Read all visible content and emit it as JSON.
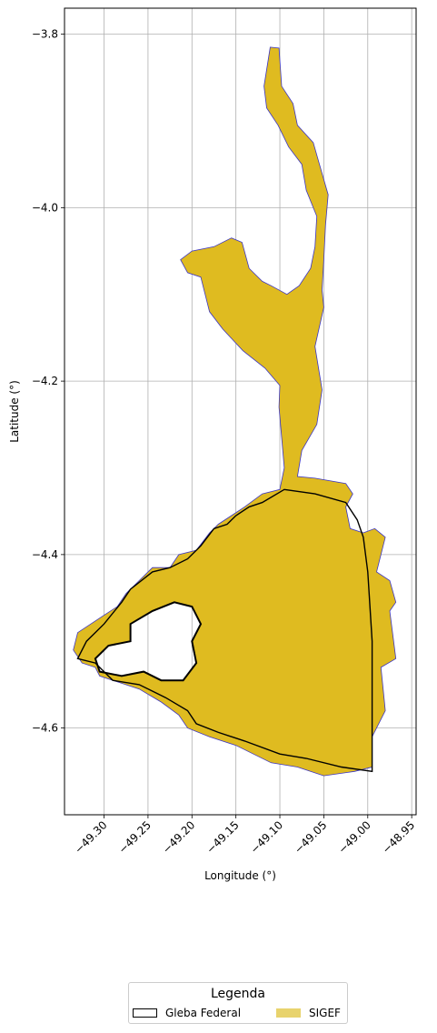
{
  "chart_data": {
    "type": "map",
    "title": "",
    "xlabel": "Longitude (°)",
    "ylabel": "Latitude (°)",
    "xlim": [
      -49.345,
      -48.945
    ],
    "ylim": [
      -4.7,
      -3.77
    ],
    "grid": true,
    "x_ticks": [
      -49.3,
      -49.25,
      -49.2,
      -49.15,
      -49.1,
      -49.05,
      -49.0,
      -48.95
    ],
    "x_tick_labels": [
      "−49.30",
      "−49.25",
      "−49.20",
      "−49.15",
      "−49.10",
      "−49.05",
      "−49.00",
      "−48.95"
    ],
    "y_ticks": [
      -3.8,
      -4.0,
      -4.2,
      -4.4,
      -4.6
    ],
    "y_tick_labels": [
      "−3.8",
      "−4.0",
      "−4.2",
      "−4.4",
      "−4.6"
    ],
    "legend": {
      "title": "Legenda",
      "placement": "bottom-center",
      "entries": [
        {
          "name": "Gleba Federal",
          "fill": "#ffffff",
          "edge": "#000000"
        },
        {
          "name": "SIGEF",
          "fill": "#e8d36d",
          "edge": "#e8d36d"
        }
      ]
    },
    "layers": {
      "sigef": {
        "name": "SIGEF",
        "fill": "#dfbb20",
        "edge": "#3b35c4",
        "outline": [
          [
            -49.111,
            -3.815
          ],
          [
            -49.101,
            -3.816
          ],
          [
            -49.098,
            -3.86
          ],
          [
            -49.085,
            -3.88
          ],
          [
            -49.08,
            -3.905
          ],
          [
            -49.062,
            -3.925
          ],
          [
            -49.055,
            -3.95
          ],
          [
            -49.045,
            -3.985
          ],
          [
            -49.048,
            -4.02
          ],
          [
            -49.05,
            -4.06
          ],
          [
            -49.052,
            -4.095
          ],
          [
            -49.05,
            -4.115
          ],
          [
            -49.06,
            -4.16
          ],
          [
            -49.052,
            -4.21
          ],
          [
            -49.058,
            -4.25
          ],
          [
            -49.075,
            -4.28
          ],
          [
            -49.08,
            -4.31
          ],
          [
            -49.06,
            -4.312
          ],
          [
            -49.025,
            -4.318
          ],
          [
            -49.017,
            -4.33
          ],
          [
            -49.025,
            -4.345
          ],
          [
            -49.02,
            -4.37
          ],
          [
            -49.005,
            -4.375
          ],
          [
            -48.992,
            -4.37
          ],
          [
            -48.98,
            -4.38
          ],
          [
            -48.99,
            -4.42
          ],
          [
            -48.975,
            -4.43
          ],
          [
            -48.968,
            -4.455
          ],
          [
            -48.975,
            -4.465
          ],
          [
            -48.968,
            -4.52
          ],
          [
            -48.985,
            -4.53
          ],
          [
            -48.98,
            -4.58
          ],
          [
            -48.995,
            -4.61
          ],
          [
            -48.995,
            -4.645
          ],
          [
            -49.015,
            -4.65
          ],
          [
            -49.05,
            -4.655
          ],
          [
            -49.08,
            -4.645
          ],
          [
            -49.11,
            -4.64
          ],
          [
            -49.15,
            -4.62
          ],
          [
            -49.18,
            -4.61
          ],
          [
            -49.205,
            -4.6
          ],
          [
            -49.215,
            -4.585
          ],
          [
            -49.235,
            -4.57
          ],
          [
            -49.26,
            -4.555
          ],
          [
            -49.29,
            -4.545
          ],
          [
            -49.305,
            -4.54
          ],
          [
            -49.31,
            -4.53
          ],
          [
            -49.325,
            -4.525
          ],
          [
            -49.335,
            -4.51
          ],
          [
            -49.33,
            -4.49
          ],
          [
            -49.3,
            -4.47
          ],
          [
            -49.285,
            -4.46
          ],
          [
            -49.275,
            -4.445
          ],
          [
            -49.26,
            -4.43
          ],
          [
            -49.245,
            -4.415
          ],
          [
            -49.225,
            -4.415
          ],
          [
            -49.215,
            -4.4
          ],
          [
            -49.195,
            -4.395
          ],
          [
            -49.18,
            -4.375
          ],
          [
            -49.17,
            -4.365
          ],
          [
            -49.155,
            -4.355
          ],
          [
            -49.14,
            -4.345
          ],
          [
            -49.12,
            -4.33
          ],
          [
            -49.1,
            -4.325
          ],
          [
            -49.095,
            -4.3
          ],
          [
            -49.098,
            -4.265
          ],
          [
            -49.101,
            -4.23
          ],
          [
            -49.1,
            -4.205
          ],
          [
            -49.117,
            -4.185
          ],
          [
            -49.142,
            -4.165
          ],
          [
            -49.165,
            -4.14
          ],
          [
            -49.18,
            -4.12
          ],
          [
            -49.19,
            -4.08
          ],
          [
            -49.205,
            -4.075
          ],
          [
            -49.213,
            -4.06
          ],
          [
            -49.2,
            -4.05
          ],
          [
            -49.175,
            -4.045
          ],
          [
            -49.155,
            -4.035
          ],
          [
            -49.143,
            -4.04
          ],
          [
            -49.135,
            -4.07
          ],
          [
            -49.12,
            -4.085
          ],
          [
            -49.11,
            -4.09
          ],
          [
            -49.092,
            -4.1
          ],
          [
            -49.078,
            -4.09
          ],
          [
            -49.065,
            -4.07
          ],
          [
            -49.06,
            -4.045
          ],
          [
            -49.058,
            -4.01
          ],
          [
            -49.07,
            -3.98
          ],
          [
            -49.075,
            -3.95
          ],
          [
            -49.09,
            -3.93
          ],
          [
            -49.102,
            -3.905
          ],
          [
            -49.115,
            -3.885
          ],
          [
            -49.118,
            -3.86
          ],
          [
            -49.111,
            -3.815
          ]
        ]
      },
      "gleba_federal": {
        "name": "Gleba Federal",
        "edge": "#000000",
        "outline": [
          [
            -49.095,
            -4.325
          ],
          [
            -49.06,
            -4.33
          ],
          [
            -49.025,
            -4.34
          ],
          [
            -49.012,
            -4.36
          ],
          [
            -49.005,
            -4.38
          ],
          [
            -49.0,
            -4.42
          ],
          [
            -48.995,
            -4.5
          ],
          [
            -48.995,
            -4.65
          ],
          [
            -49.03,
            -4.645
          ],
          [
            -49.07,
            -4.635
          ],
          [
            -49.1,
            -4.63
          ],
          [
            -49.14,
            -4.615
          ],
          [
            -49.17,
            -4.605
          ],
          [
            -49.195,
            -4.595
          ],
          [
            -49.205,
            -4.58
          ],
          [
            -49.23,
            -4.565
          ],
          [
            -49.26,
            -4.55
          ],
          [
            -49.29,
            -4.545
          ],
          [
            -49.31,
            -4.525
          ],
          [
            -49.33,
            -4.52
          ],
          [
            -49.32,
            -4.5
          ],
          [
            -49.3,
            -4.48
          ],
          [
            -49.28,
            -4.455
          ],
          [
            -49.27,
            -4.44
          ],
          [
            -49.245,
            -4.42
          ],
          [
            -49.225,
            -4.415
          ],
          [
            -49.205,
            -4.405
          ],
          [
            -49.19,
            -4.39
          ],
          [
            -49.175,
            -4.37
          ],
          [
            -49.16,
            -4.365
          ],
          [
            -49.15,
            -4.355
          ],
          [
            -49.135,
            -4.345
          ],
          [
            -49.12,
            -4.34
          ],
          [
            -49.095,
            -4.325
          ]
        ]
      },
      "holes": [
        [
          [
            -49.27,
            -4.48
          ],
          [
            -49.245,
            -4.465
          ],
          [
            -49.22,
            -4.455
          ],
          [
            -49.2,
            -4.46
          ],
          [
            -49.19,
            -4.48
          ],
          [
            -49.2,
            -4.5
          ],
          [
            -49.195,
            -4.525
          ],
          [
            -49.21,
            -4.545
          ],
          [
            -49.235,
            -4.545
          ],
          [
            -49.255,
            -4.535
          ],
          [
            -49.28,
            -4.54
          ],
          [
            -49.305,
            -4.535
          ],
          [
            -49.31,
            -4.52
          ],
          [
            -49.295,
            -4.505
          ],
          [
            -49.27,
            -4.5
          ],
          [
            -49.27,
            -4.48
          ]
        ]
      ]
    }
  }
}
